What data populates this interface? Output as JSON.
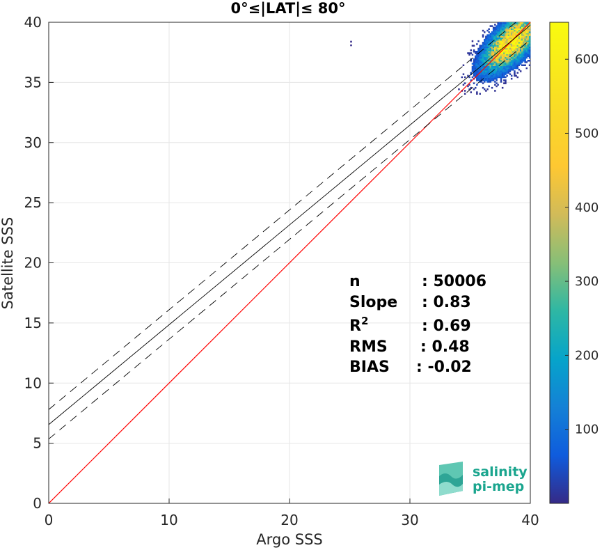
{
  "chart_data": {
    "type": "heatmap",
    "title": "0°≤|LAT|≤ 80°",
    "xlabel": "Argo SSS",
    "ylabel": "Satellite SSS",
    "xlim": [
      0,
      40
    ],
    "ylim": [
      0,
      40
    ],
    "xticks": [
      "0",
      "10",
      "20",
      "30",
      "40"
    ],
    "yticks": [
      "0",
      "5",
      "10",
      "15",
      "20",
      "25",
      "30",
      "35",
      "40"
    ],
    "grid": true,
    "colorbar": {
      "range": [
        0,
        650
      ],
      "ticks": [
        "100",
        "200",
        "300",
        "400",
        "500",
        "600"
      ],
      "colormap": "parula"
    },
    "lines": [
      {
        "name": "identity",
        "color": "#ff0000",
        "style": "solid",
        "points": [
          [
            0,
            0
          ],
          [
            40,
            40
          ]
        ]
      },
      {
        "name": "regression",
        "color": "#000000",
        "style": "solid",
        "points": [
          [
            0,
            6.55
          ],
          [
            40,
            39.75
          ]
        ]
      },
      {
        "name": "regression-upper",
        "color": "#000000",
        "style": "dashed",
        "points": [
          [
            0,
            7.8
          ],
          [
            40,
            41.0
          ]
        ]
      },
      {
        "name": "regression-lower",
        "color": "#000000",
        "style": "dashed",
        "points": [
          [
            0,
            5.35
          ],
          [
            40,
            38.55
          ]
        ]
      }
    ],
    "density_cluster": {
      "center": [
        38.4,
        38.3
      ],
      "x_range": [
        33.5,
        40
      ],
      "y_range": [
        33.5,
        40
      ],
      "peak_count": 640
    },
    "outliers": [
      [
        25.1,
        38.4
      ],
      [
        25.1,
        38.1
      ]
    ],
    "stats": [
      {
        "label": "n",
        "value": ": 50006"
      },
      {
        "label": "Slope",
        "value": ": 0.83"
      },
      {
        "label": "R",
        "sup": "2",
        "value": ": 0.69"
      },
      {
        "label": "RMS",
        "value": ": 0.48"
      },
      {
        "label": "BIAS",
        "value": ": -0.02"
      }
    ]
  },
  "logo": {
    "line1": "salinity",
    "line2": "pi-mep"
  }
}
